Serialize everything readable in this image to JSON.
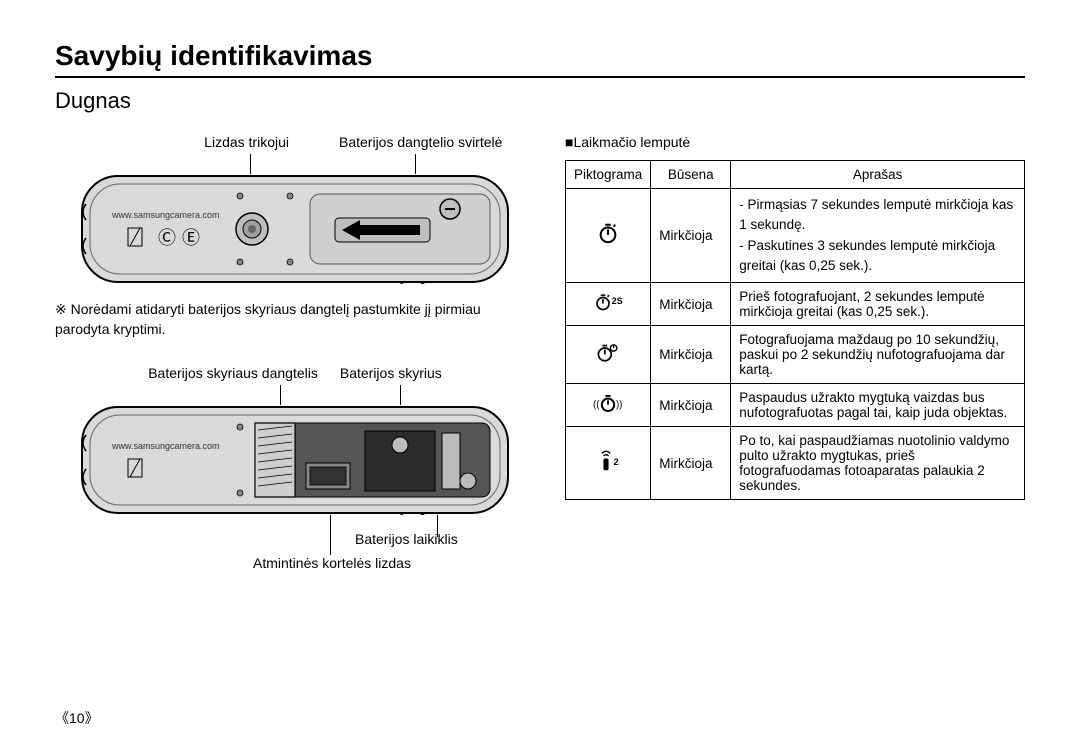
{
  "title": "Savybių identifikavimas",
  "subtitle": "Dugnas",
  "diagram1": {
    "label_left": "Lizdas trikojui",
    "label_right": "Baterijos dangtelio svirtelė",
    "url_text": "www.samsungcamera.com"
  },
  "note": {
    "symbol": "※",
    "text": "Norėdami atidaryti baterijos skyriaus dangtelį pastumkite jį pirmiau parodyta kryptimi."
  },
  "diagram2": {
    "label_top_left": "Baterijos skyriaus dangtelis",
    "label_top_right": "Baterijos skyrius",
    "label_bottom_left": "Atmintinės kortelės lizdas",
    "label_bottom_right": "Baterijos laikiklis",
    "url_text": "www.samsungcamera.com"
  },
  "right": {
    "section_prefix": "■",
    "section_label": "Laikmačio lemputė",
    "headers": [
      "Piktograma",
      "Būsena",
      "Aprašas"
    ],
    "rows": [
      {
        "icon_sub": "",
        "status": "Mirkčioja",
        "desc": "- Pirmąsias 7 sekundes lemputė mirkčioja kas 1 sekundę.\n- Paskutines 3 sekundes lemputė mirkčioja greitai (kas 0,25 sek.)."
      },
      {
        "icon_sub": "2S",
        "status": "Mirkčioja",
        "desc": "Prieš fotografuojant, 2 sekundes lemputė mirkčioja greitai (kas 0,25 sek.)."
      },
      {
        "icon_sub": "",
        "status": "Mirkčioja",
        "desc": "Fotografuojama maždaug po 10 sekundžių, paskui po 2 sekundžių nufotografuojama dar kartą."
      },
      {
        "icon_sub": "",
        "status": "Mirkčioja",
        "desc": "Paspaudus užrakto mygtuką vaizdas bus nufotografuotas pagal tai, kaip juda objektas."
      },
      {
        "icon_sub": "2",
        "status": "Mirkčioja",
        "desc": "Po to, kai paspaudžiamas nuotolinio valdymo pulto užrakto mygtukas, prieš fotografuodamas fotoaparatas palaukia 2 sekundes."
      }
    ]
  },
  "page_number": "《10》",
  "colors": {
    "body_fill": "#d9d9d9",
    "body_stroke": "#000000",
    "inner_fill": "#bfbfbf"
  }
}
